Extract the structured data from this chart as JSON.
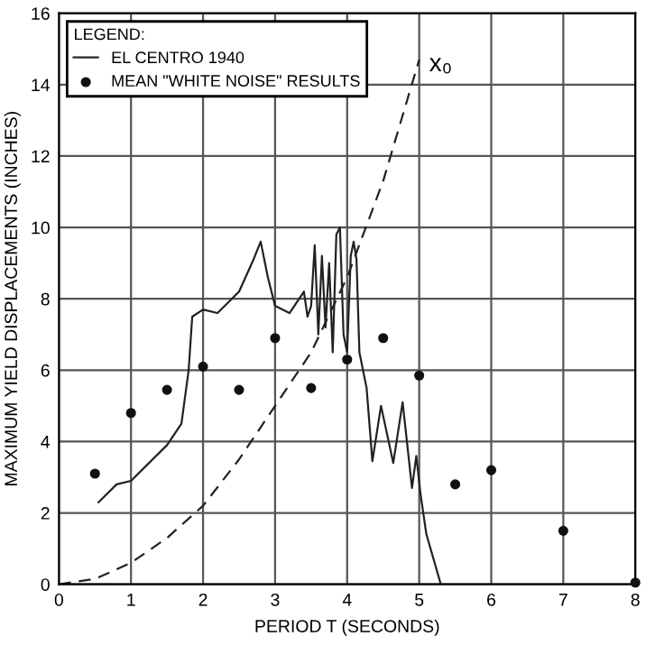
{
  "chart_data": {
    "type": "line",
    "xlabel": "PERIOD T (SECONDS)",
    "ylabel": "MAXIMUM YIELD DISPLACEMENTS (INCHES)",
    "legend_title": "LEGEND:",
    "legend": "top left",
    "grid": true,
    "xlim": [
      0,
      8
    ],
    "ylim": [
      0,
      16
    ],
    "xticks": [
      0,
      1,
      2,
      3,
      4,
      5,
      6,
      7,
      8
    ],
    "yticks": [
      0,
      2,
      4,
      6,
      8,
      10,
      12,
      14,
      16
    ],
    "annotations": [
      {
        "text": "x₀",
        "x": 5,
        "y": 14.7
      }
    ],
    "series": [
      {
        "name": "EL CENTRO 1940",
        "color": "#222222",
        "line_style": "solid",
        "marker": "none",
        "x": [
          0.55,
          0.8,
          1.0,
          1.2,
          1.5,
          1.7,
          1.8,
          1.85,
          2.0,
          2.2,
          2.5,
          2.7,
          2.8,
          2.9,
          3.0,
          3.2,
          3.3,
          3.4,
          3.45,
          3.5,
          3.55,
          3.6,
          3.65,
          3.7,
          3.75,
          3.8,
          3.85,
          3.9,
          3.95,
          4.0,
          4.05,
          4.09,
          4.13,
          4.17,
          4.27,
          4.35,
          4.47,
          4.64,
          4.77,
          4.9,
          4.96,
          5.02,
          5.1,
          5.3
        ],
        "values": [
          2.3,
          2.8,
          2.9,
          3.3,
          3.9,
          4.5,
          6.0,
          7.5,
          7.7,
          7.6,
          8.2,
          9.1,
          9.6,
          8.6,
          7.8,
          7.6,
          7.9,
          8.2,
          7.5,
          7.8,
          9.5,
          7.0,
          9.2,
          7.2,
          9.0,
          6.5,
          9.8,
          10.0,
          7.0,
          6.5,
          9.2,
          9.6,
          9.1,
          6.5,
          5.5,
          3.45,
          5.0,
          3.4,
          5.1,
          2.7,
          3.6,
          2.5,
          1.4,
          0
        ]
      },
      {
        "name": "MEAN \"WHITE NOISE\" RESULTS",
        "type": "scatter",
        "color": "#111111",
        "marker": "circle",
        "x": [
          0.5,
          1,
          1.5,
          2,
          2.5,
          3,
          3.5,
          4,
          4.5,
          5,
          5.5,
          6,
          7,
          8
        ],
        "values": [
          3.1,
          4.8,
          5.45,
          6.1,
          5.45,
          6.9,
          5.5,
          6.3,
          6.9,
          5.85,
          2.8,
          3.2,
          1.5,
          0.05
        ]
      },
      {
        "type": "line",
        "color": "#222222",
        "line_style": "dashed",
        "marker": "none",
        "x": [
          0,
          0.5,
          1,
          1.5,
          2,
          2.5,
          3,
          3.5,
          4,
          4.5,
          5
        ],
        "values": [
          0,
          0.15,
          0.6,
          1.3,
          2.2,
          3.5,
          5.0,
          6.5,
          8.6,
          11.3,
          14.7
        ]
      }
    ]
  }
}
